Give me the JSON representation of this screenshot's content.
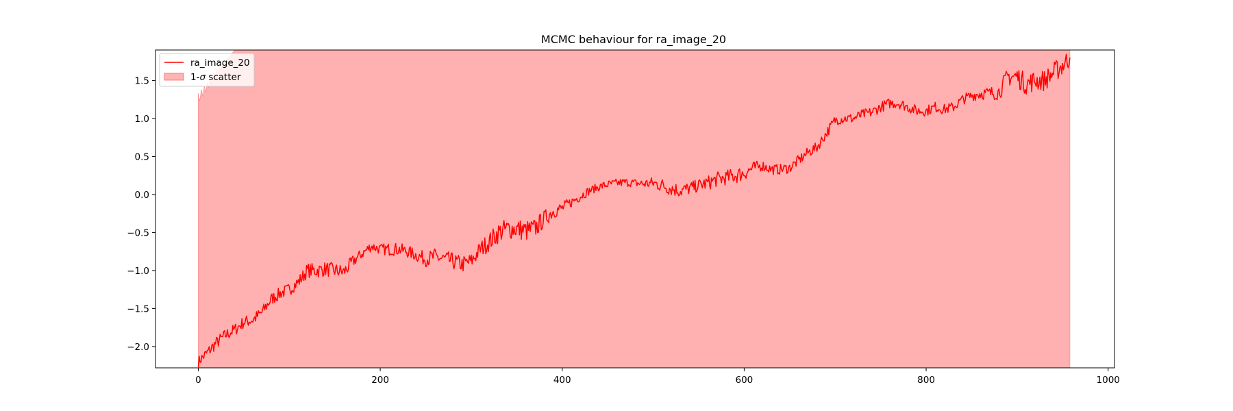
{
  "chart_data": {
    "type": "line",
    "title": "MCMC behaviour for ra_image_20",
    "xlabel": "",
    "ylabel": "",
    "xlim": [
      -47,
      1007
    ],
    "ylim": [
      -2.28,
      1.9
    ],
    "x_ticks": [
      0,
      200,
      400,
      600,
      800,
      1000
    ],
    "x_tick_labels": [
      "0",
      "200",
      "400",
      "600",
      "800",
      "1000"
    ],
    "y_ticks": [
      -2.0,
      -1.5,
      -1.0,
      -0.5,
      0.0,
      0.5,
      1.0,
      1.5
    ],
    "y_tick_labels": [
      "−2.0",
      "−1.5",
      "−1.0",
      "−0.5",
      "0.0",
      "0.5",
      "1.0",
      "1.5"
    ],
    "grid": false,
    "legend_position": "upper-left",
    "legend": {
      "line_label": "ra_image_20",
      "band_label_prefix": "1-",
      "band_label_symbol": "σ",
      "band_label_suffix": " scatter"
    },
    "colors": {
      "line": "#ff0000",
      "band": "#ff9a9a"
    },
    "series": [
      {
        "name": "ra_image_20",
        "x": [
          0,
          10,
          20,
          30,
          40,
          50,
          60,
          70,
          80,
          90,
          100,
          110,
          120,
          130,
          140,
          150,
          160,
          170,
          180,
          190,
          200,
          210,
          220,
          230,
          240,
          250,
          260,
          270,
          280,
          290,
          300,
          310,
          320,
          330,
          340,
          350,
          360,
          370,
          380,
          390,
          400,
          410,
          420,
          430,
          440,
          450,
          460,
          470,
          480,
          490,
          500,
          510,
          520,
          530,
          540,
          550,
          560,
          570,
          580,
          590,
          600,
          610,
          620,
          630,
          640,
          650,
          660,
          670,
          680,
          690,
          700,
          710,
          720,
          730,
          740,
          750,
          760,
          770,
          780,
          790,
          800,
          810,
          820,
          830,
          840,
          850,
          860,
          870,
          880,
          890,
          900,
          910,
          920,
          930,
          940,
          950,
          958
        ],
        "values": [
          -2.2,
          -2.08,
          -1.95,
          -1.85,
          -1.78,
          -1.68,
          -1.65,
          -1.55,
          -1.38,
          -1.3,
          -1.25,
          -1.15,
          -1.0,
          -1.0,
          -0.98,
          -1.0,
          -1.02,
          -0.88,
          -0.78,
          -0.68,
          -0.72,
          -0.72,
          -0.72,
          -0.75,
          -0.8,
          -0.85,
          -0.82,
          -0.85,
          -0.88,
          -0.92,
          -0.88,
          -0.72,
          -0.62,
          -0.5,
          -0.45,
          -0.45,
          -0.48,
          -0.45,
          -0.32,
          -0.22,
          -0.18,
          -0.1,
          -0.02,
          0.05,
          0.1,
          0.13,
          0.15,
          0.16,
          0.15,
          0.14,
          0.15,
          0.12,
          0.08,
          0.05,
          0.08,
          0.12,
          0.15,
          0.2,
          0.22,
          0.25,
          0.28,
          0.35,
          0.38,
          0.33,
          0.33,
          0.35,
          0.45,
          0.55,
          0.62,
          0.8,
          0.98,
          1.0,
          1.0,
          1.05,
          1.08,
          1.15,
          1.2,
          1.2,
          1.15,
          1.1,
          1.1,
          1.15,
          1.12,
          1.15,
          1.25,
          1.3,
          1.33,
          1.33,
          1.35,
          1.55,
          1.55,
          1.45,
          1.5,
          1.5,
          1.6,
          1.7,
          1.8
        ],
        "noise_amplitude": [
          0.05,
          0.06,
          0.06,
          0.06,
          0.06,
          0.06,
          0.06,
          0.06,
          0.06,
          0.06,
          0.06,
          0.06,
          0.07,
          0.07,
          0.07,
          0.07,
          0.07,
          0.06,
          0.05,
          0.05,
          0.05,
          0.06,
          0.06,
          0.06,
          0.06,
          0.07,
          0.08,
          0.08,
          0.08,
          0.08,
          0.08,
          0.08,
          0.09,
          0.1,
          0.1,
          0.1,
          0.1,
          0.1,
          0.08,
          0.07,
          0.06,
          0.05,
          0.05,
          0.04,
          0.04,
          0.04,
          0.04,
          0.04,
          0.04,
          0.05,
          0.06,
          0.07,
          0.07,
          0.07,
          0.06,
          0.06,
          0.07,
          0.07,
          0.07,
          0.08,
          0.07,
          0.06,
          0.05,
          0.05,
          0.05,
          0.05,
          0.05,
          0.05,
          0.05,
          0.05,
          0.05,
          0.05,
          0.05,
          0.05,
          0.05,
          0.05,
          0.05,
          0.05,
          0.05,
          0.05,
          0.05,
          0.05,
          0.05,
          0.05,
          0.05,
          0.05,
          0.06,
          0.06,
          0.08,
          0.09,
          0.1,
          0.1,
          0.1,
          0.1,
          0.1,
          0.1,
          0.1
        ]
      }
    ],
    "band": {
      "name": "1-σ scatter",
      "x": [
        0,
        958
      ],
      "lower": -2.28,
      "upper": 1.9,
      "early_upper_dip": {
        "x": [
          0,
          40
        ],
        "values": [
          1.25,
          1.9
        ]
      }
    }
  }
}
